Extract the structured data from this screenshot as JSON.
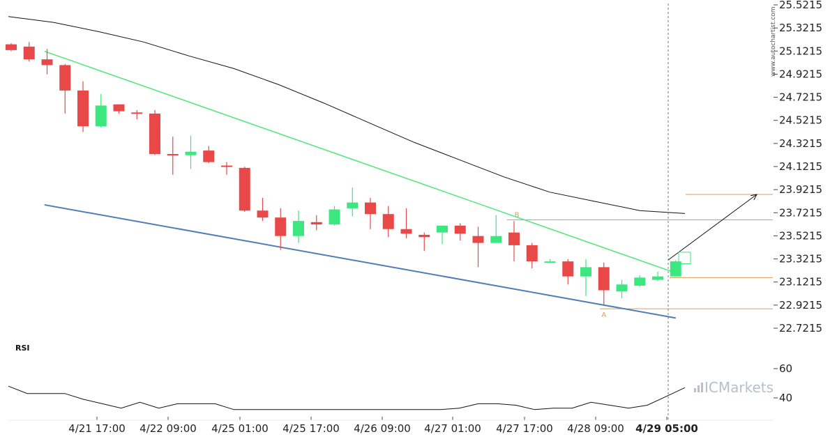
{
  "watermark": "www.autochartist.com",
  "logo": {
    "text": "ICMarkets"
  },
  "rsi": {
    "label": "RSI",
    "ticks": [
      "60",
      "40"
    ],
    "values": [
      48,
      43,
      43,
      43,
      39,
      36,
      33,
      37,
      33,
      36,
      36,
      36,
      32,
      32,
      32,
      32,
      32,
      32,
      32,
      32,
      32,
      32,
      32,
      32,
      33,
      36,
      36,
      35,
      32,
      33,
      33,
      37,
      35,
      33,
      35,
      41,
      47
    ]
  },
  "colors": {
    "bull": "#3de77f",
    "bear": "#e84848",
    "upper_line": "#4de878",
    "lower_line": "#4f7db8",
    "level": "#e09a5c",
    "band": "#111111"
  },
  "chart_data": {
    "type": "candlestick",
    "y_ticks": [
      "25.5215",
      "25.3215",
      "25.1215",
      "24.9215",
      "24.7215",
      "24.5215",
      "24.3215",
      "24.1215",
      "23.9215",
      "23.7215",
      "23.5215",
      "23.3215",
      "23.1215",
      "22.9215",
      "22.7215"
    ],
    "x_ticks": [
      {
        "label": "4/21 17:00",
        "bold": false
      },
      {
        "label": "4/22 09:00",
        "bold": false
      },
      {
        "label": "4/25 01:00",
        "bold": false
      },
      {
        "label": "4/25 17:00",
        "bold": false
      },
      {
        "label": "4/26 09:00",
        "bold": false
      },
      {
        "label": "4/27 01:00",
        "bold": false
      },
      {
        "label": "4/27 17:00",
        "bold": false
      },
      {
        "label": "4/28 09:00",
        "bold": false
      },
      {
        "label": "4/29 05:00",
        "bold": true
      }
    ],
    "ohlc": [
      [
        25.18,
        25.19,
        25.12,
        25.13
      ],
      [
        25.16,
        25.2,
        25.03,
        25.05
      ],
      [
        25.05,
        25.14,
        24.92,
        25.0
      ],
      [
        25.0,
        25.01,
        24.58,
        24.78
      ],
      [
        24.78,
        24.86,
        24.42,
        24.47
      ],
      [
        24.47,
        24.75,
        24.46,
        24.65
      ],
      [
        24.66,
        24.66,
        24.58,
        24.6
      ],
      [
        24.59,
        24.61,
        24.53,
        24.58
      ],
      [
        24.58,
        24.61,
        24.22,
        24.23
      ],
      [
        24.23,
        24.38,
        24.05,
        24.22
      ],
      [
        24.22,
        24.39,
        24.1,
        24.25
      ],
      [
        24.26,
        24.3,
        24.15,
        24.16
      ],
      [
        24.13,
        24.16,
        24.05,
        24.12
      ],
      [
        24.11,
        24.12,
        23.73,
        23.74
      ],
      [
        23.74,
        23.85,
        23.65,
        23.68
      ],
      [
        23.68,
        23.76,
        23.4,
        23.52
      ],
      [
        23.52,
        23.74,
        23.46,
        23.65
      ],
      [
        23.64,
        23.7,
        23.57,
        23.62
      ],
      [
        23.62,
        23.78,
        23.61,
        23.75
      ],
      [
        23.76,
        23.94,
        23.69,
        23.81
      ],
      [
        23.81,
        23.85,
        23.58,
        23.71
      ],
      [
        23.71,
        23.78,
        23.51,
        23.58
      ],
      [
        23.58,
        23.76,
        23.5,
        23.54
      ],
      [
        23.53,
        23.55,
        23.39,
        23.51
      ],
      [
        23.55,
        23.61,
        23.45,
        23.61
      ],
      [
        23.61,
        23.63,
        23.48,
        23.54
      ],
      [
        23.52,
        23.6,
        23.25,
        23.46
      ],
      [
        23.46,
        23.7,
        23.46,
        23.52
      ],
      [
        23.55,
        23.65,
        23.3,
        23.44
      ],
      [
        23.44,
        23.46,
        23.24,
        23.3
      ],
      [
        23.3,
        23.32,
        23.3,
        23.3
      ],
      [
        23.3,
        23.32,
        23.1,
        23.17
      ],
      [
        23.17,
        23.32,
        23.0,
        23.25
      ],
      [
        23.25,
        23.29,
        22.92,
        23.05
      ],
      [
        23.04,
        23.14,
        22.98,
        23.1
      ],
      [
        23.09,
        23.18,
        23.08,
        23.16
      ],
      [
        23.14,
        23.21,
        23.13,
        23.17
      ],
      [
        23.17,
        23.31,
        23.17,
        23.3
      ]
    ],
    "bands_upper": [
      25.42,
      25.37,
      25.29,
      25.2,
      25.08,
      24.97,
      24.83,
      24.67,
      24.5,
      24.33,
      24.18,
      24.03,
      23.9,
      23.82,
      23.74,
      23.715
    ],
    "pattern": {
      "upper_line": [
        [
          1,
          25.12
        ],
        [
          37,
          23.2
        ]
      ],
      "lower_line": [
        [
          1,
          23.79
        ],
        [
          37,
          22.81
        ]
      ],
      "point_a": {
        "label": "A",
        "candle": 33,
        "price": 22.89
      },
      "point_b": {
        "label": "B",
        "candle": 28,
        "price": 23.66
      },
      "levels": [
        22.89,
        23.16,
        23.66,
        23.88
      ],
      "forecast_arrow": [
        [
          37,
          23.3
        ],
        [
          42,
          23.88
        ]
      ],
      "forecast_box": [
        [
          38,
          23.28
        ],
        [
          39,
          23.38
        ]
      ]
    }
  }
}
